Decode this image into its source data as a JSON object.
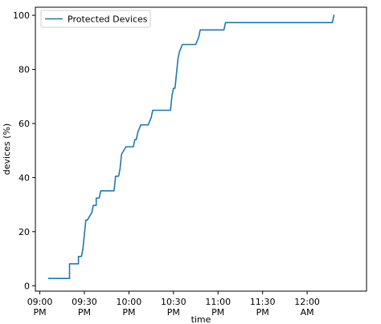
{
  "chart_data": {
    "type": "line",
    "title": "",
    "xlabel": "time",
    "ylabel": "devices (%)",
    "grid": false,
    "legend": {
      "position": "top-left",
      "entries": [
        "Protected Devices"
      ]
    },
    "xlim": [
      "08:57 PM",
      "12:40 AM"
    ],
    "ylim": [
      -2,
      103
    ],
    "x_ticks": [
      {
        "time": "09:00 PM",
        "label": [
          "09:00",
          "PM"
        ]
      },
      {
        "time": "09:30 PM",
        "label": [
          "09:30",
          "PM"
        ]
      },
      {
        "time": "10:00 PM",
        "label": [
          "10:00",
          "PM"
        ]
      },
      {
        "time": "10:30 PM",
        "label": [
          "10:30",
          "PM"
        ]
      },
      {
        "time": "11:00 PM",
        "label": [
          "11:00",
          "PM"
        ]
      },
      {
        "time": "11:30 PM",
        "label": [
          "11:30",
          "PM"
        ]
      },
      {
        "time": "12:00 AM",
        "label": [
          "12:00",
          "AM"
        ]
      }
    ],
    "y_ticks": [
      0,
      20,
      40,
      60,
      80,
      100
    ],
    "series": [
      {
        "name": "Protected Devices",
        "color": "#1f77b4",
        "x": [
          "09:06 PM",
          "09:20 PM",
          "09:20 PM",
          "09:26 PM",
          "09:26 PM",
          "09:28 PM",
          "09:29 PM",
          "09:31 PM",
          "09:32 PM",
          "09:35 PM",
          "09:36 PM",
          "09:38 PM",
          "09:38 PM",
          "09:40 PM",
          "09:41 PM",
          "09:44 PM",
          "09:44 PM",
          "09:50 PM",
          "09:51 PM",
          "09:53 PM",
          "09:54 PM",
          "09:55 PM",
          "09:58 PM",
          "10:03 PM",
          "10:04 PM",
          "10:05 PM",
          "10:06 PM",
          "10:08 PM",
          "10:13 PM",
          "10:15 PM",
          "10:16 PM",
          "10:28 PM",
          "10:29 PM",
          "10:30 PM",
          "10:31 PM",
          "10:33 PM",
          "10:34 PM",
          "10:36 PM",
          "10:45 PM",
          "10:47 PM",
          "10:48 PM",
          "11:04 PM",
          "11:05 PM",
          "12:17 AM",
          "12:18 AM"
        ],
        "y": [
          2.7,
          2.7,
          8.1,
          8.1,
          10.8,
          10.8,
          13.5,
          24.3,
          24.3,
          27.0,
          29.7,
          29.7,
          32.4,
          32.4,
          35.1,
          35.1,
          35.1,
          35.1,
          40.5,
          40.5,
          43.2,
          48.6,
          51.4,
          51.4,
          54.1,
          54.1,
          56.8,
          59.5,
          59.5,
          62.2,
          64.9,
          64.9,
          70.3,
          73.0,
          73.0,
          83.8,
          86.5,
          89.2,
          89.2,
          91.9,
          94.6,
          94.6,
          97.3,
          97.3,
          100
        ]
      }
    ]
  }
}
